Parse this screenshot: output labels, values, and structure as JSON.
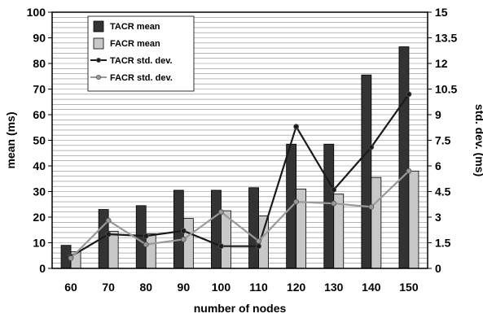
{
  "chart_data": {
    "type": "bar",
    "categories": [
      "60",
      "70",
      "80",
      "90",
      "100",
      "110",
      "120",
      "130",
      "140",
      "150"
    ],
    "xlabel": "number of nodes",
    "ylabel": "mean (ms)",
    "y2label": "std. dev. (ms)",
    "ylim": [
      0,
      100
    ],
    "y2lim": [
      0,
      15
    ],
    "yticks": [
      0,
      10,
      20,
      30,
      40,
      50,
      60,
      70,
      80,
      90,
      100
    ],
    "y2ticks": [
      "0",
      "1.5",
      "3",
      "4.5",
      "6",
      "7.5",
      "9",
      "10.5",
      "12",
      "13.5",
      "15"
    ],
    "grid": true,
    "legend_position": "top-left",
    "series": [
      {
        "name": "TACR mean",
        "kind": "bar",
        "axis": "left",
        "color": "#333333",
        "values": [
          9,
          23,
          24.5,
          30.5,
          30.5,
          31.5,
          48.5,
          48.5,
          75.5,
          86.5
        ]
      },
      {
        "name": "FACR mean",
        "kind": "bar",
        "axis": "left",
        "color": "#c8c8c8",
        "values": [
          6.5,
          14.5,
          13.5,
          19.5,
          22.5,
          20.5,
          31,
          29,
          35.5,
          38
        ]
      },
      {
        "name": "TACR std. dev.",
        "kind": "line",
        "axis": "right",
        "color": "#1a1a1a",
        "values": [
          0.7,
          2.0,
          1.9,
          2.2,
          1.3,
          1.3,
          8.3,
          4.6,
          7.1,
          10.2
        ]
      },
      {
        "name": "FACR std. dev.",
        "kind": "line",
        "axis": "right",
        "color": "#999999",
        "values": [
          0.6,
          2.8,
          1.4,
          1.7,
          3.3,
          1.6,
          3.9,
          3.8,
          3.6,
          5.7
        ]
      }
    ]
  }
}
